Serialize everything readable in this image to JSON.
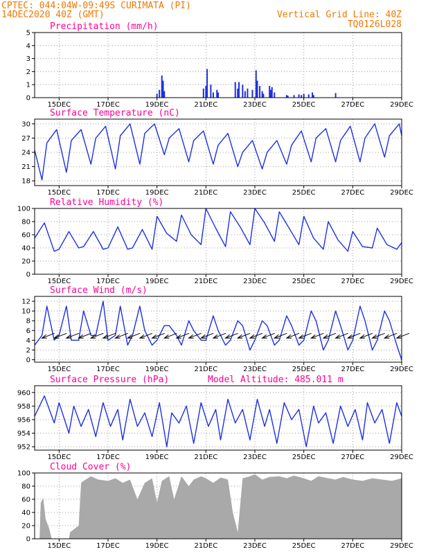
{
  "header": {
    "line1": "CPTEC:  044:04W-09:49S  CURIMATA (PI)",
    "line2": "14DEC2020 40Z (GMT)",
    "grid_note": "Vertical Grid Line: 40Z",
    "code": "TQ0126L028"
  },
  "colors": {
    "header": "#f07800",
    "title": "#ff0090",
    "line": "#1f2fe0",
    "cloud": "#a9a9a9",
    "arrow": "#000000"
  },
  "x_ticks": [
    "15DEC",
    "17DEC",
    "19DEC",
    "21DEC",
    "23DEC",
    "25DEC",
    "27DEC",
    "29DEC"
  ],
  "chart_data": [
    {
      "type": "bar",
      "title": "Precipitation (mm/h)",
      "ylim": [
        0,
        5
      ],
      "yticks": [
        0,
        1,
        2,
        3,
        4,
        5
      ],
      "x_range_days": [
        14.0,
        29.0
      ],
      "x": [
        19.0,
        19.1,
        19.2,
        19.25,
        19.3,
        20.9,
        21.0,
        21.05,
        21.2,
        21.3,
        21.45,
        21.5,
        22.2,
        22.3,
        22.35,
        22.5,
        22.6,
        22.7,
        22.9,
        23.05,
        23.1,
        23.2,
        23.3,
        23.35,
        23.6,
        23.65,
        23.7,
        23.8,
        24.3,
        24.35,
        24.6,
        24.8,
        24.9,
        25.0,
        25.2,
        25.35,
        25.4,
        26.3
      ],
      "values": [
        0.3,
        0.6,
        1.7,
        1.3,
        0.5,
        0.7,
        0.9,
        2.2,
        1.0,
        0.4,
        0.6,
        0.4,
        1.2,
        0.7,
        1.2,
        1.0,
        0.5,
        0.7,
        0.6,
        2.1,
        1.3,
        0.9,
        0.5,
        0.3,
        0.9,
        0.6,
        0.8,
        0.4,
        0.2,
        0.15,
        0.2,
        0.25,
        0.2,
        0.3,
        0.25,
        0.4,
        0.2,
        0.35
      ]
    },
    {
      "type": "line",
      "title": "Surface Temperature (nC)",
      "ylim": [
        17,
        31
      ],
      "yticks": [
        18,
        21,
        24,
        27,
        30
      ],
      "x_range_days": [
        14.0,
        29.0
      ],
      "x": [
        14.0,
        14.3,
        14.5,
        14.9,
        15.3,
        15.5,
        15.9,
        16.3,
        16.5,
        16.9,
        17.3,
        17.5,
        17.9,
        18.3,
        18.5,
        18.9,
        19.3,
        19.5,
        19.9,
        20.3,
        20.5,
        20.9,
        21.3,
        21.5,
        21.9,
        22.3,
        22.5,
        22.9,
        23.3,
        23.5,
        23.9,
        24.3,
        24.5,
        24.9,
        25.3,
        25.5,
        25.9,
        26.3,
        26.5,
        26.9,
        27.3,
        27.5,
        27.9,
        28.3,
        28.5,
        28.9,
        29.0
      ],
      "values": [
        24.5,
        18.2,
        26.0,
        28.8,
        19.8,
        26.5,
        28.8,
        21.5,
        27.0,
        29.5,
        20.5,
        27.5,
        30.0,
        21.5,
        28.0,
        30.0,
        23.5,
        27.0,
        29.0,
        22.0,
        26.5,
        28.5,
        21.5,
        25.5,
        28.0,
        21.0,
        24.0,
        26.5,
        20.5,
        24.0,
        26.5,
        21.5,
        25.5,
        28.5,
        22.0,
        27.0,
        29.0,
        22.0,
        26.5,
        29.5,
        22.0,
        27.0,
        30.0,
        23.0,
        27.5,
        30.0,
        27.5
      ]
    },
    {
      "type": "line",
      "title": "Relative Humidity (%)",
      "ylim": [
        0,
        100
      ],
      "yticks": [
        0,
        20,
        40,
        60,
        80,
        100
      ],
      "x_range_days": [
        14.0,
        29.0
      ],
      "x": [
        14.0,
        14.4,
        14.8,
        15.0,
        15.4,
        15.8,
        16.0,
        16.4,
        16.8,
        17.0,
        17.4,
        17.8,
        18.0,
        18.4,
        18.8,
        19.0,
        19.4,
        19.8,
        20.0,
        20.4,
        20.8,
        21.0,
        21.4,
        21.8,
        22.0,
        22.4,
        22.8,
        23.0,
        23.4,
        23.8,
        24.0,
        24.4,
        24.8,
        25.0,
        25.4,
        25.8,
        26.0,
        26.4,
        26.8,
        27.0,
        27.4,
        27.8,
        28.0,
        28.4,
        28.8,
        29.0
      ],
      "values": [
        55,
        78,
        35,
        38,
        65,
        40,
        42,
        65,
        38,
        40,
        72,
        38,
        40,
        68,
        38,
        88,
        62,
        50,
        90,
        60,
        45,
        100,
        70,
        42,
        95,
        72,
        45,
        100,
        78,
        50,
        95,
        70,
        45,
        88,
        55,
        38,
        80,
        52,
        35,
        65,
        42,
        40,
        70,
        45,
        38,
        48
      ]
    },
    {
      "type": "line",
      "title": "Surface Wind (m/s)",
      "ylim": [
        -0.5,
        13
      ],
      "yticks": [
        0,
        2,
        4,
        6,
        8,
        10,
        12
      ],
      "x_range_days": [
        14.0,
        29.0
      ],
      "x": [
        14.0,
        14.3,
        14.5,
        14.8,
        15.0,
        15.3,
        15.5,
        15.8,
        16.0,
        16.3,
        16.5,
        16.8,
        17.0,
        17.3,
        17.5,
        17.8,
        18.0,
        18.3,
        18.5,
        18.8,
        19.0,
        19.3,
        19.5,
        19.8,
        20.0,
        20.3,
        20.5,
        20.8,
        21.0,
        21.3,
        21.5,
        21.8,
        22.0,
        22.3,
        22.5,
        22.8,
        23.0,
        23.3,
        23.5,
        23.8,
        24.0,
        24.3,
        24.5,
        24.8,
        25.0,
        25.3,
        25.5,
        25.8,
        26.0,
        26.3,
        26.5,
        26.8,
        27.0,
        27.3,
        27.5,
        27.8,
        28.0,
        28.3,
        28.5,
        28.8,
        29.0
      ],
      "values": [
        3,
        5,
        11,
        4,
        5,
        11,
        4,
        4,
        10,
        5,
        5,
        12,
        4,
        5,
        11,
        3,
        5,
        11,
        6,
        3,
        4,
        7,
        7,
        5,
        3,
        8,
        6,
        4,
        4,
        9,
        6,
        3,
        4,
        8,
        7,
        2,
        4,
        8,
        7,
        3,
        4,
        9,
        7,
        3,
        4,
        10,
        8,
        2,
        4,
        10,
        7,
        2,
        4,
        11,
        8,
        2,
        4,
        10,
        8,
        3,
        0
      ]
    },
    {
      "type": "line",
      "title": "Surface Pressure (hPa)",
      "annotation": "Model Altitude: 485.011 m",
      "ylim": [
        951.5,
        961
      ],
      "yticks": [
        952,
        954,
        956,
        958,
        960
      ],
      "x_range_days": [
        14.0,
        29.0
      ],
      "x": [
        14.0,
        14.4,
        14.8,
        15.0,
        15.4,
        15.6,
        15.9,
        16.2,
        16.5,
        16.8,
        17.1,
        17.4,
        17.6,
        17.9,
        18.2,
        18.5,
        18.8,
        19.1,
        19.4,
        19.6,
        19.9,
        20.2,
        20.5,
        20.8,
        21.1,
        21.4,
        21.6,
        21.9,
        22.2,
        22.5,
        22.8,
        23.1,
        23.4,
        23.6,
        23.9,
        24.2,
        24.5,
        24.8,
        25.1,
        25.4,
        25.6,
        25.9,
        26.2,
        26.5,
        26.8,
        27.1,
        27.4,
        27.6,
        27.9,
        28.2,
        28.5,
        28.8,
        29.0
      ],
      "values": [
        956.5,
        959.5,
        955.5,
        958.5,
        954.0,
        958.0,
        955.0,
        957.5,
        953.5,
        958.5,
        955.0,
        957.5,
        953.0,
        959.0,
        955.0,
        957.0,
        953.5,
        958.5,
        952.0,
        957.0,
        955.5,
        958.0,
        952.5,
        958.5,
        955.0,
        957.5,
        953.0,
        959.0,
        955.5,
        957.5,
        953.0,
        959.0,
        955.0,
        957.5,
        952.5,
        958.5,
        956.0,
        957.5,
        952.0,
        958.0,
        955.5,
        957.0,
        952.5,
        958.0,
        955.0,
        957.5,
        953.0,
        958.5,
        955.5,
        957.5,
        952.5,
        958.5,
        956.5
      ]
    },
    {
      "type": "area",
      "title": "Cloud Cover (%)",
      "ylim": [
        0,
        100
      ],
      "yticks": [
        0,
        20,
        40,
        60,
        80,
        100
      ],
      "x_range_days": [
        14.0,
        29.0
      ],
      "x": [
        14.0,
        14.2,
        14.25,
        14.35,
        14.45,
        14.6,
        14.7,
        15.4,
        15.45,
        15.8,
        15.9,
        16.0,
        16.3,
        16.6,
        17.0,
        17.3,
        17.6,
        17.9,
        18.2,
        18.5,
        18.8,
        19.0,
        19.2,
        19.5,
        19.7,
        20.0,
        20.3,
        20.5,
        20.8,
        21.0,
        21.3,
        21.6,
        21.9,
        22.1,
        22.3,
        22.5,
        22.8,
        23.0,
        23.3,
        23.6,
        24.0,
        24.3,
        24.6,
        25.0,
        25.3,
        25.6,
        26.0,
        26.3,
        26.6,
        27.0,
        27.4,
        27.8,
        28.2,
        28.6,
        29.0
      ],
      "values": [
        0,
        0,
        55,
        62,
        30,
        15,
        0,
        0,
        10,
        20,
        85,
        88,
        95,
        90,
        88,
        92,
        85,
        90,
        60,
        85,
        92,
        55,
        88,
        95,
        60,
        95,
        80,
        90,
        95,
        92,
        85,
        93,
        90,
        40,
        10,
        92,
        95,
        98,
        90,
        94,
        95,
        92,
        96,
        92,
        88,
        95,
        92,
        90,
        94,
        90,
        88,
        92,
        90,
        88,
        92
      ]
    }
  ]
}
